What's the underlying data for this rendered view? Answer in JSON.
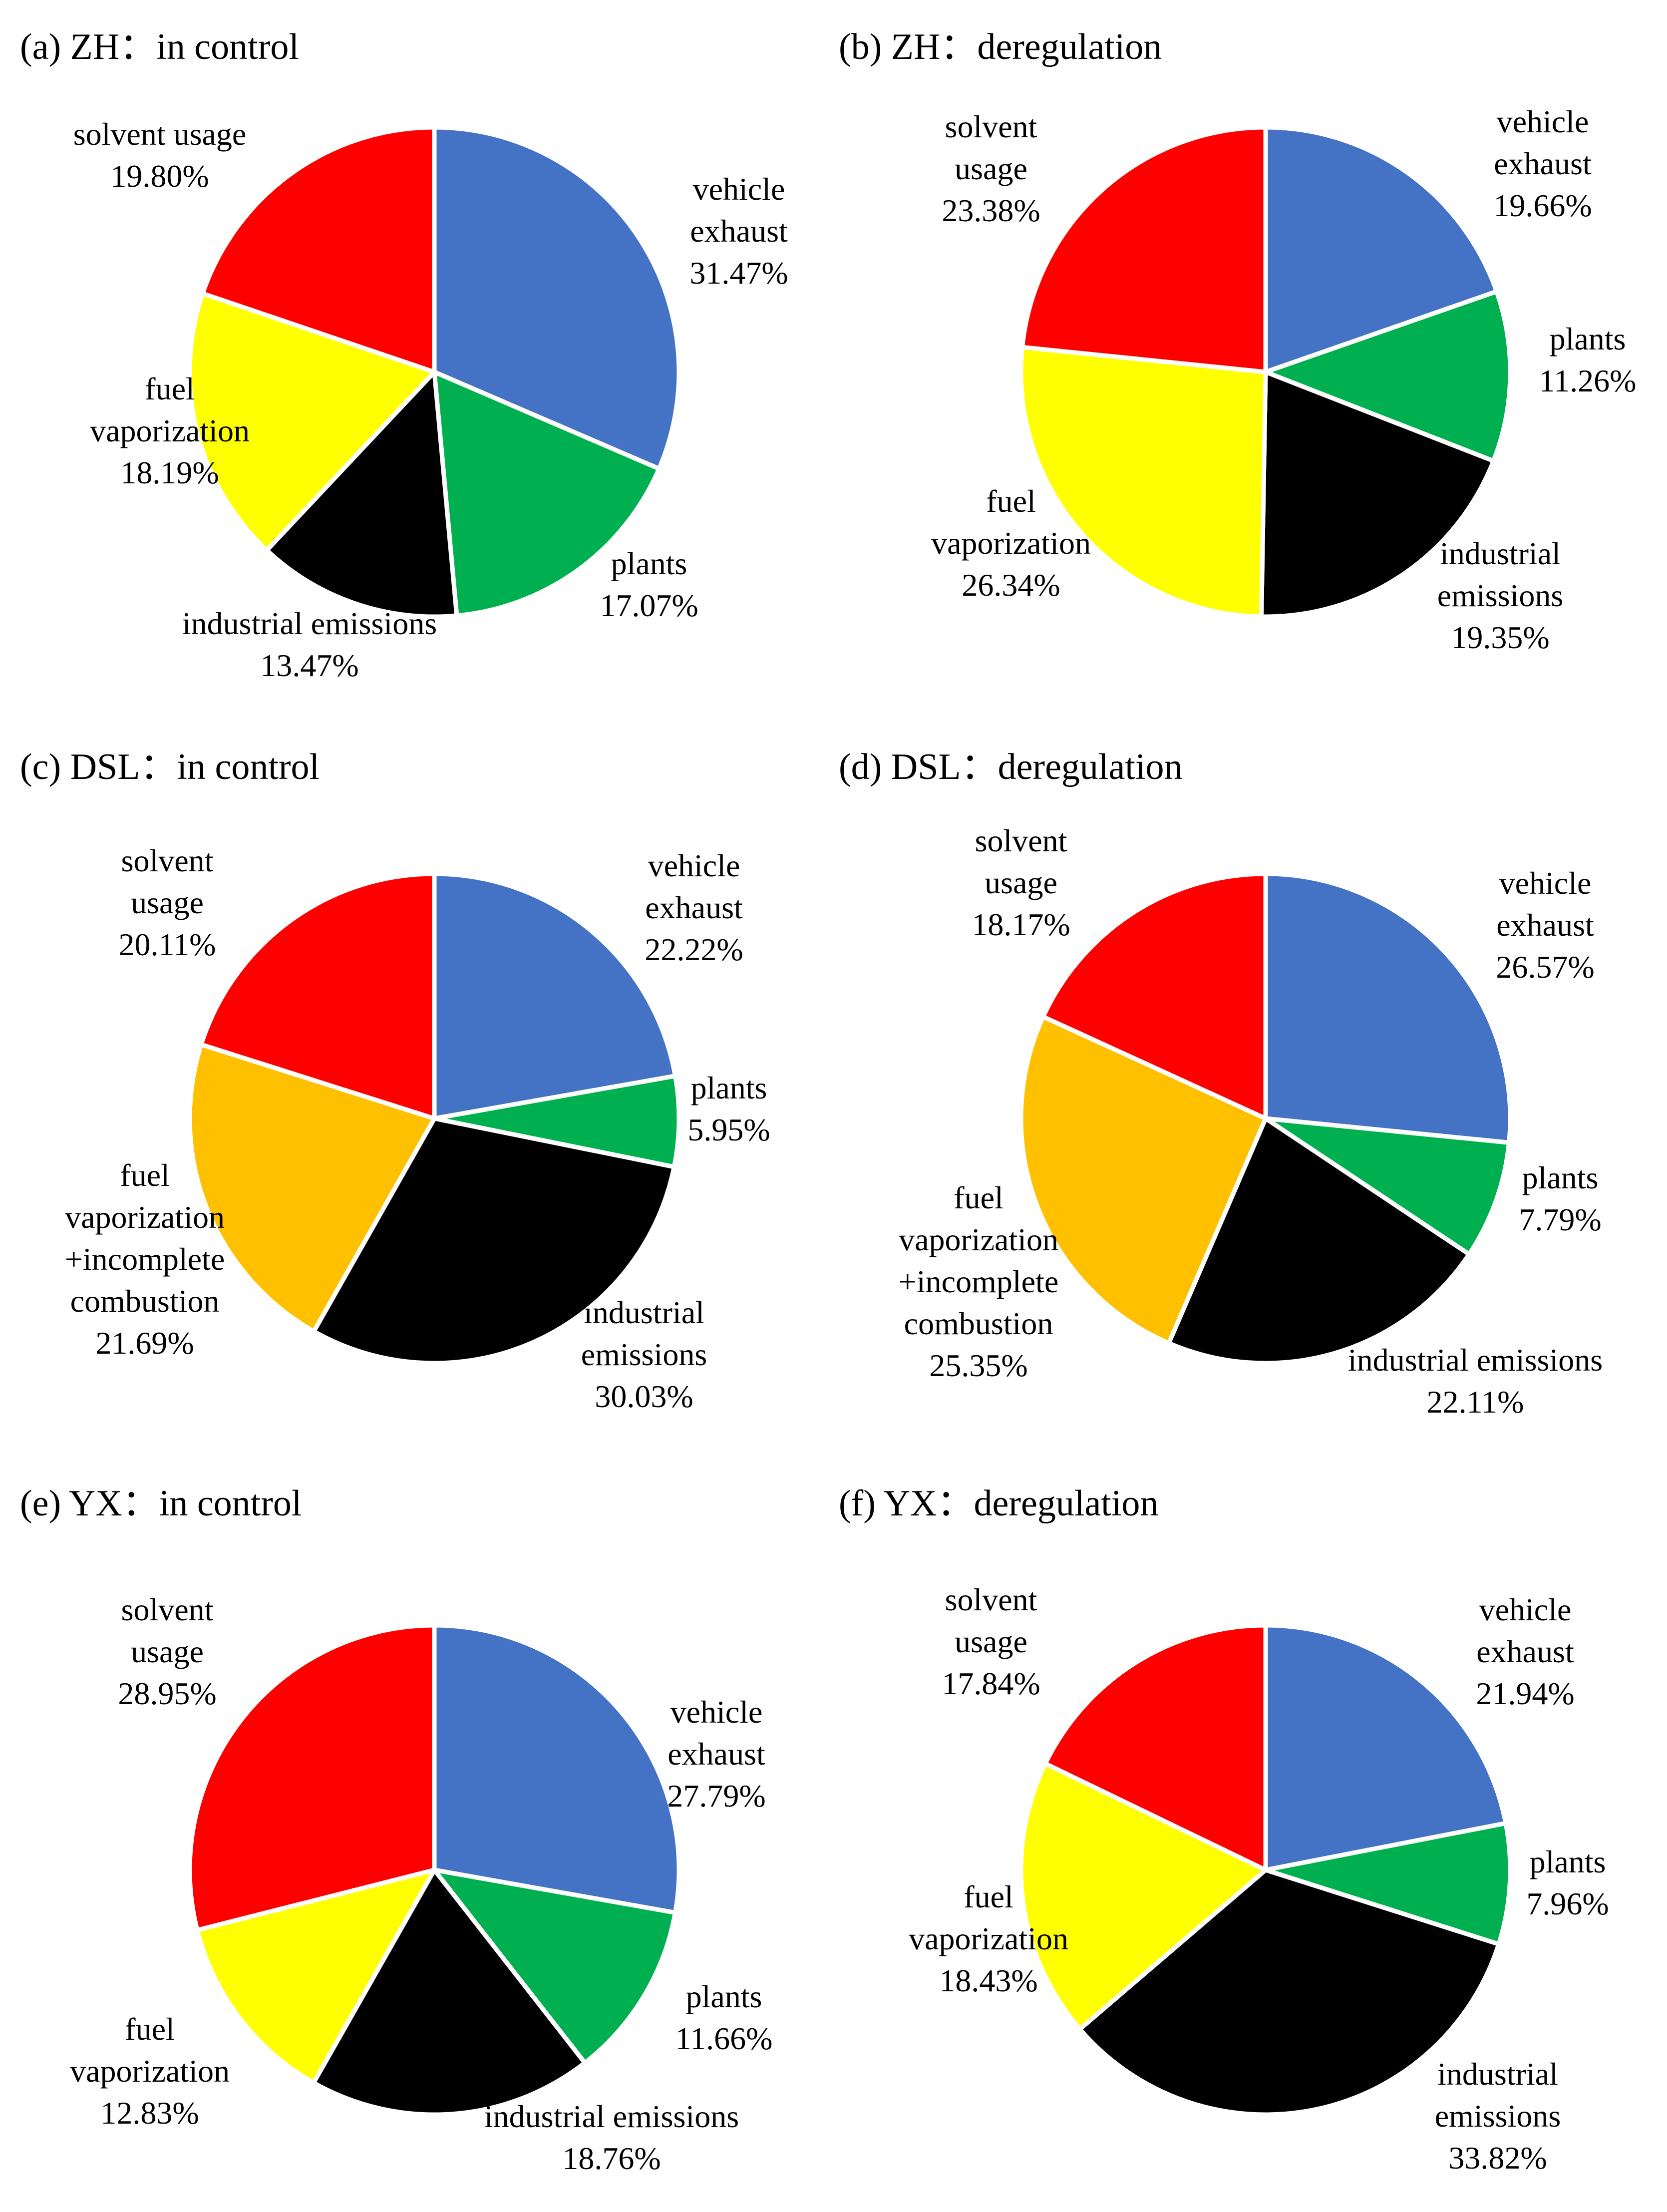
{
  "figure": {
    "description_free": true
  },
  "colors": {
    "vehicle_exhaust": "#4472C4",
    "plants": "#00B050",
    "industrial_emissions": "#000000",
    "fuel_vaporization": "#FFFF00",
    "fuel_vaporization_incomplete_combustion": "#FFC000",
    "solvent_usage": "#FF0000"
  },
  "chart_data": [
    {
      "type": "pie",
      "panel": "(a)",
      "title": "ZH：in control",
      "slices": [
        {
          "key": "vehicle_exhaust",
          "label_lines": [
            "vehicle",
            "exhaust"
          ],
          "value": 31.47,
          "value_label": "31.47%"
        },
        {
          "key": "plants",
          "label_lines": [
            "plants"
          ],
          "value": 17.07,
          "value_label": "17.07%"
        },
        {
          "key": "industrial_emissions",
          "label_lines": [
            "industrial emissions"
          ],
          "value": 13.47,
          "value_label": "13.47%"
        },
        {
          "key": "fuel_vaporization",
          "label_lines": [
            "fuel",
            "vaporization"
          ],
          "value": 18.19,
          "value_label": "18.19%"
        },
        {
          "key": "solvent_usage",
          "label_lines": [
            "solvent usage"
          ],
          "value": 19.8,
          "value_label": "19.80%"
        }
      ]
    },
    {
      "type": "pie",
      "panel": "(b)",
      "title": "ZH：deregulation",
      "slices": [
        {
          "key": "vehicle_exhaust",
          "label_lines": [
            "vehicle",
            "exhaust"
          ],
          "value": 19.66,
          "value_label": "19.66%"
        },
        {
          "key": "plants",
          "label_lines": [
            "plants"
          ],
          "value": 11.26,
          "value_label": "11.26%"
        },
        {
          "key": "industrial_emissions",
          "label_lines": [
            "industrial",
            "emissions"
          ],
          "value": 19.35,
          "value_label": "19.35%"
        },
        {
          "key": "fuel_vaporization",
          "label_lines": [
            "fuel",
            "vaporization"
          ],
          "value": 26.34,
          "value_label": "26.34%"
        },
        {
          "key": "solvent_usage",
          "label_lines": [
            "solvent",
            "usage"
          ],
          "value": 23.38,
          "value_label": "23.38%"
        }
      ]
    },
    {
      "type": "pie",
      "panel": "(c)",
      "title": "DSL：in control",
      "slices": [
        {
          "key": "vehicle_exhaust",
          "label_lines": [
            "vehicle",
            "exhaust"
          ],
          "value": 22.22,
          "value_label": "22.22%"
        },
        {
          "key": "plants",
          "label_lines": [
            "plants"
          ],
          "value": 5.95,
          "value_label": "5.95%"
        },
        {
          "key": "industrial_emissions",
          "label_lines": [
            "industrial",
            "emissions"
          ],
          "value": 30.03,
          "value_label": "30.03%"
        },
        {
          "key": "fuel_vaporization_incomplete_combustion",
          "label_lines": [
            "fuel",
            "vaporization",
            "+incomplete",
            "combustion"
          ],
          "value": 21.69,
          "value_label": "21.69%"
        },
        {
          "key": "solvent_usage",
          "label_lines": [
            "solvent",
            "usage"
          ],
          "value": 20.11,
          "value_label": "20.11%"
        }
      ]
    },
    {
      "type": "pie",
      "panel": "(d)",
      "title": "DSL：deregulation",
      "slices": [
        {
          "key": "vehicle_exhaust",
          "label_lines": [
            "vehicle",
            "exhaust"
          ],
          "value": 26.57,
          "value_label": "26.57%"
        },
        {
          "key": "plants",
          "label_lines": [
            "plants"
          ],
          "value": 7.79,
          "value_label": "7.79%"
        },
        {
          "key": "industrial_emissions",
          "label_lines": [
            "industrial emissions"
          ],
          "value": 22.11,
          "value_label": "22.11%"
        },
        {
          "key": "fuel_vaporization_incomplete_combustion",
          "label_lines": [
            "fuel",
            "vaporization",
            "+incomplete",
            "combustion"
          ],
          "value": 25.35,
          "value_label": "25.35%"
        },
        {
          "key": "solvent_usage",
          "label_lines": [
            "solvent",
            "usage"
          ],
          "value": 18.17,
          "value_label": "18.17%"
        }
      ]
    },
    {
      "type": "pie",
      "panel": "(e)",
      "title": "YX：in control",
      "slices": [
        {
          "key": "vehicle_exhaust",
          "label_lines": [
            "vehicle",
            "exhaust"
          ],
          "value": 27.79,
          "value_label": "27.79%"
        },
        {
          "key": "plants",
          "label_lines": [
            "plants"
          ],
          "value": 11.66,
          "value_label": "11.66%"
        },
        {
          "key": "industrial_emissions",
          "label_lines": [
            "industrial emissions"
          ],
          "value": 18.76,
          "value_label": "18.76%"
        },
        {
          "key": "fuel_vaporization",
          "label_lines": [
            "fuel",
            "vaporization"
          ],
          "value": 12.83,
          "value_label": "12.83%"
        },
        {
          "key": "solvent_usage",
          "label_lines": [
            "solvent",
            "usage"
          ],
          "value": 28.95,
          "value_label": "28.95%"
        }
      ]
    },
    {
      "type": "pie",
      "panel": "(f)",
      "title": "YX：deregulation",
      "slices": [
        {
          "key": "vehicle_exhaust",
          "label_lines": [
            "vehicle",
            "exhaust"
          ],
          "value": 21.94,
          "value_label": "21.94%"
        },
        {
          "key": "plants",
          "label_lines": [
            "plants"
          ],
          "value": 7.96,
          "value_label": "7.96%"
        },
        {
          "key": "industrial_emissions",
          "label_lines": [
            "industrial",
            "emissions"
          ],
          "value": 33.82,
          "value_label": "33.82%"
        },
        {
          "key": "fuel_vaporization",
          "label_lines": [
            "fuel",
            "vaporization"
          ],
          "value": 18.43,
          "value_label": "18.43%"
        },
        {
          "key": "solvent_usage",
          "label_lines": [
            "solvent",
            "usage"
          ],
          "value": 17.84,
          "value_label": "17.84%"
        }
      ]
    }
  ]
}
